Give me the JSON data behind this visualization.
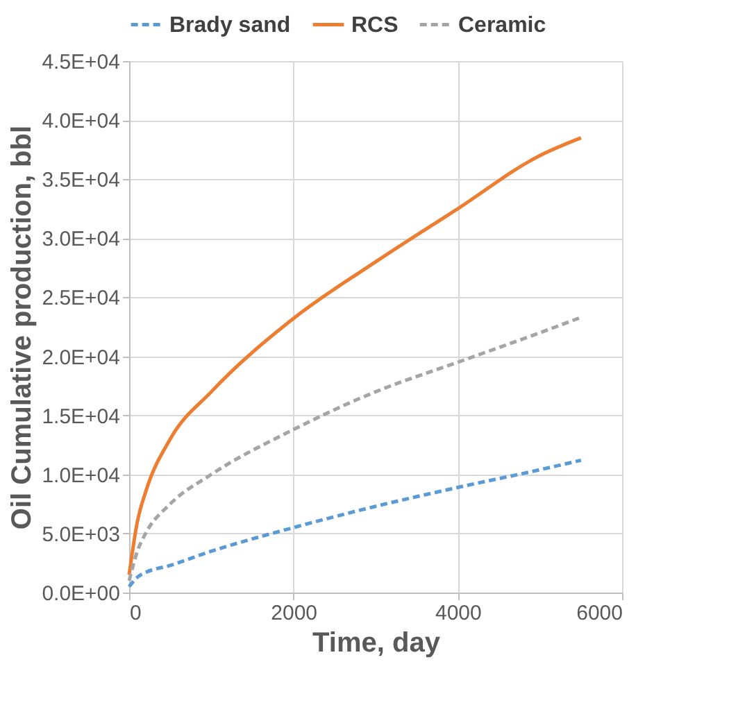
{
  "chart_data": {
    "type": "line",
    "xlabel": "Time, day",
    "ylabel": "Oil Cumulative production, bbl",
    "x": [
      0,
      100,
      200,
      500,
      1000,
      2000,
      3000,
      4000,
      5000,
      5500
    ],
    "series": [
      {
        "name": "Brady sand",
        "color": "#5b9bd5",
        "line_style": "dashed",
        "values": [
          500,
          1300,
          1700,
          2300,
          3500,
          5500,
          7300,
          8900,
          10400,
          11200
        ]
      },
      {
        "name": "RCS",
        "color": "#ed7d31",
        "line_style": "solid",
        "values": [
          1500,
          6000,
          8500,
          13000,
          17000,
          23200,
          28000,
          32500,
          37000,
          38500
        ]
      },
      {
        "name": "Ceramic",
        "color": "#a5a5a5",
        "line_style": "dashed",
        "values": [
          1000,
          3500,
          5000,
          7500,
          10000,
          13800,
          17000,
          19500,
          22000,
          23300
        ]
      }
    ],
    "xlim": [
      0,
      6000
    ],
    "xticks": [
      0,
      2000,
      4000,
      6000
    ],
    "ylim": [
      0,
      45000
    ],
    "yticks": [
      {
        "value": 0,
        "label": "0.0E+00"
      },
      {
        "value": 5000,
        "label": "5.0E+03"
      },
      {
        "value": 10000,
        "label": "1.0E+04"
      },
      {
        "value": 15000,
        "label": "1.5E+04"
      },
      {
        "value": 20000,
        "label": "2.0E+04"
      },
      {
        "value": 25000,
        "label": "2.5E+04"
      },
      {
        "value": 30000,
        "label": "3.0E+04"
      },
      {
        "value": 35000,
        "label": "3.5E+04"
      },
      {
        "value": 40000,
        "label": "4.0E+04"
      },
      {
        "value": 45000,
        "label": "4.5E+04"
      }
    ],
    "grid": true,
    "legend": "top"
  }
}
